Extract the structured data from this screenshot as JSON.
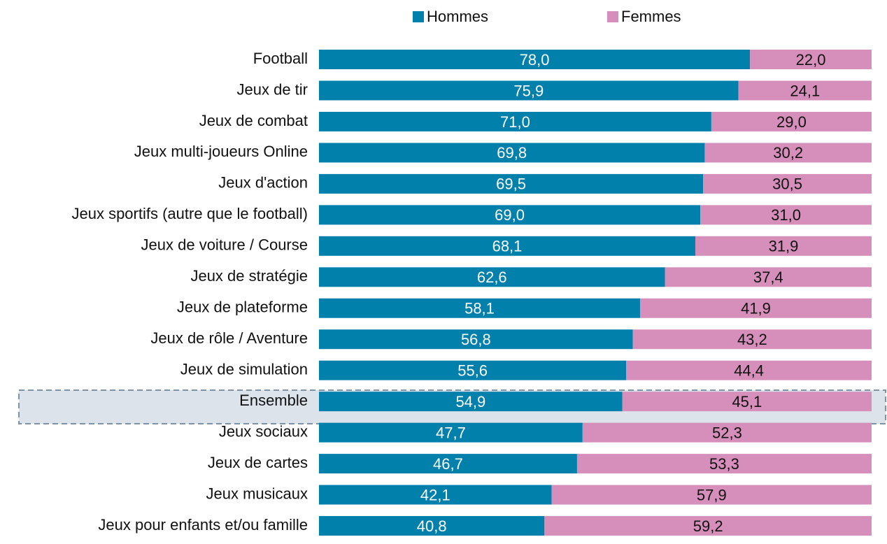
{
  "chart_data": {
    "type": "stacked-barh",
    "categories": [
      "Football",
      "Jeux de tir",
      "Jeux de combat",
      "Jeux multi-joueurs Online",
      "Jeux d'action",
      "Jeux sportifs (autre que le football)",
      "Jeux de voiture / Course",
      "Jeux de stratégie",
      "Jeux de plateforme",
      "Jeux de rôle / Aventure",
      "Jeux de simulation",
      "Ensemble",
      "Jeux sociaux",
      "Jeux de cartes",
      "Jeux musicaux",
      "Jeux pour enfants et/ou famille"
    ],
    "series": [
      {
        "name": "Hommes",
        "color": "#0080ab",
        "values": [
          78.0,
          75.9,
          71.0,
          69.8,
          69.5,
          69.0,
          68.1,
          62.6,
          58.1,
          56.8,
          55.6,
          54.9,
          47.7,
          46.7,
          42.1,
          40.8
        ],
        "value_labels": [
          "78,0",
          "75,9",
          "71,0",
          "69,8",
          "69,5",
          "69,0",
          "68,1",
          "62,6",
          "58,1",
          "56,8",
          "55,6",
          "54,9",
          "47,7",
          "46,7",
          "42,1",
          "40,8"
        ]
      },
      {
        "name": "Femmes",
        "color": "#d68fbb",
        "values": [
          22.0,
          24.1,
          29.0,
          30.2,
          30.5,
          31.0,
          31.9,
          37.4,
          41.9,
          43.2,
          44.4,
          45.1,
          52.3,
          53.3,
          57.9,
          59.2
        ],
        "value_labels": [
          "22,0",
          "24,1",
          "29,0",
          "30,2",
          "30,5",
          "31,0",
          "31,9",
          "37,4",
          "41,9",
          "43,2",
          "44,4",
          "45,1",
          "52,3",
          "53,3",
          "57,9",
          "59,2"
        ]
      }
    ],
    "xlim": [
      0,
      100
    ]
  }
}
